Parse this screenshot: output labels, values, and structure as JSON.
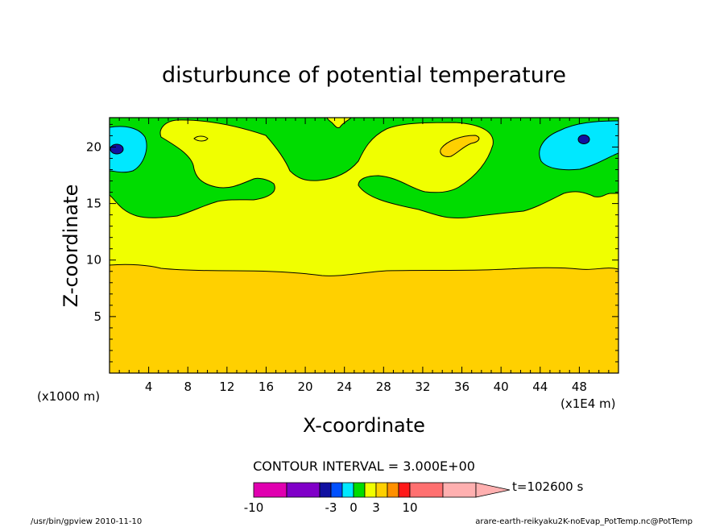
{
  "chart_data": {
    "type": "filled-contour",
    "title": "disturbunce of potential temperature",
    "xlabel": "X-coordinate",
    "ylabel": "Z-coordinate",
    "x_unit_note": "(x1E4 m)",
    "y_unit_note": "(x1000 m)",
    "xlim": [
      0,
      52
    ],
    "ylim": [
      0,
      22.6
    ],
    "x_ticks": [
      "4",
      "8",
      "12",
      "16",
      "20",
      "24",
      "28",
      "32",
      "36",
      "40",
      "44",
      "48"
    ],
    "y_ticks": [
      "5",
      "10",
      "15",
      "20"
    ],
    "contour_interval_text": "CONTOUR INTERVAL = 3.000E+00",
    "time_text": "t=102600 s",
    "colorbar": {
      "levels": [
        "-10",
        "-3",
        "0",
        "3",
        "10"
      ],
      "colors": [
        "#e000b0",
        "#8000c8",
        "#1010a0",
        "#0050ff",
        "#00e8ff",
        "#00dc00",
        "#f0ff00",
        "#ffd000",
        "#ff9000",
        "#ff1a1a",
        "#ff7070",
        "#ffb0b0"
      ]
    },
    "regions": [
      {
        "band": "0 to 3 (orange)",
        "color": "#ffd000",
        "z_range": [
          0,
          9.5
        ]
      },
      {
        "band": "-3 to 0 (yellow)",
        "color": "#f0ff00",
        "z_range": [
          9.5,
          14.5
        ]
      },
      {
        "band": "-6 to -3 (green)",
        "color": "#00dc00",
        "z_range": [
          14.5,
          22.6
        ]
      },
      {
        "band": "-9 to -6 (cyan)",
        "color": "#00e8ff",
        "location": "upper-left and upper-right corners"
      },
      {
        "band": "< -9 (blue)",
        "color": "#1010a0",
        "location": "x~1, z~20 and x~47, z~21"
      }
    ]
  },
  "footer": {
    "left": "/usr/bin/gpview   2010-11-10",
    "right": "arare-earth-reikyaku2K-noEvap_PotTemp.nc@PotTemp"
  }
}
